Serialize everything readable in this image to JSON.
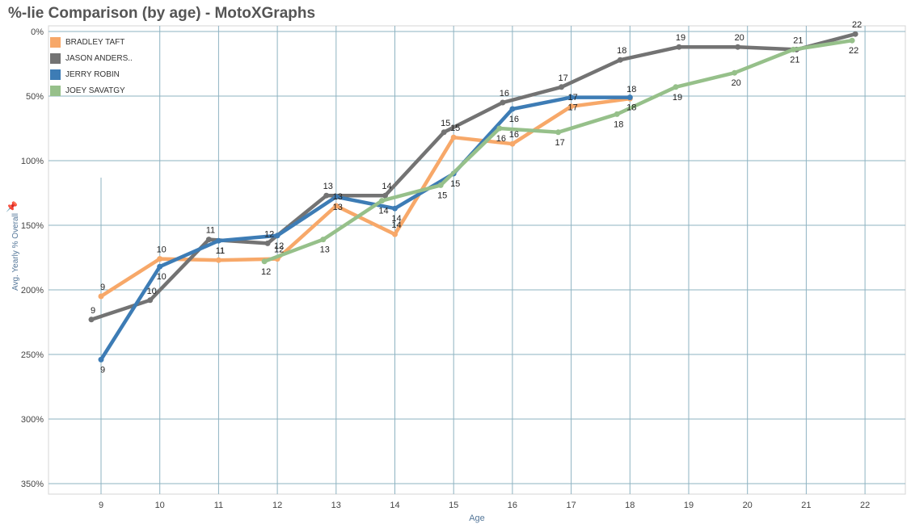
{
  "title": "%-lie Comparison (by age) - MotoXGraphs",
  "chart_data": {
    "type": "line",
    "title": "%-lie Comparison (by age) - MotoXGraphs",
    "xlabel": "Age",
    "ylabel": "Avg. Yearly % Overall",
    "x_ticks": [
      "9",
      "10",
      "11",
      "12",
      "13",
      "14",
      "15",
      "16",
      "17",
      "18",
      "19",
      "20",
      "21",
      "22"
    ],
    "y_ticks": [
      "0%",
      "50%",
      "100%",
      "150%",
      "200%",
      "250%",
      "300%",
      "350%"
    ],
    "ylim": [
      0,
      350
    ],
    "y_reversed": true,
    "grid": true,
    "legend_position": "top-left",
    "series": [
      {
        "name": "BRADLEY TAFT",
        "color": "#f7a869",
        "points": [
          {
            "age": 9,
            "value": 205,
            "label": "9"
          },
          {
            "age": 10,
            "value": 176,
            "label": "10"
          },
          {
            "age": 11,
            "value": 177,
            "label": "11"
          },
          {
            "age": 12,
            "value": 176,
            "label": "12"
          },
          {
            "age": 13,
            "value": 135,
            "label": "13"
          },
          {
            "age": 14,
            "value": 157,
            "label": "14"
          },
          {
            "age": 15,
            "value": 82,
            "label": "15"
          },
          {
            "age": 16,
            "value": 87,
            "label": "16"
          },
          {
            "age": 17,
            "value": 58,
            "label": "17"
          },
          {
            "age": 18,
            "value": 52,
            "label": "18"
          }
        ]
      },
      {
        "name": "JASON ANDERS..",
        "color": "#737373",
        "points": [
          {
            "age": 9,
            "value": 223,
            "label": "9"
          },
          {
            "age": 10,
            "value": 208,
            "label": "10"
          },
          {
            "age": 11,
            "value": 161,
            "label": "11"
          },
          {
            "age": 12,
            "value": 164,
            "label": "12"
          },
          {
            "age": 13,
            "value": 127,
            "label": "13"
          },
          {
            "age": 14,
            "value": 127,
            "label": "14"
          },
          {
            "age": 15,
            "value": 78,
            "label": "15"
          },
          {
            "age": 16,
            "value": 55,
            "label": "16"
          },
          {
            "age": 17,
            "value": 43,
            "label": "17"
          },
          {
            "age": 18,
            "value": 22,
            "label": "18"
          },
          {
            "age": 19,
            "value": 12,
            "label": "19"
          },
          {
            "age": 20,
            "value": 12,
            "label": "20"
          },
          {
            "age": 21,
            "value": 14,
            "label": "21"
          },
          {
            "age": 22,
            "value": 2,
            "label": "22"
          }
        ]
      },
      {
        "name": "JERRY ROBIN",
        "color": "#3d7cb5",
        "points": [
          {
            "age": 9,
            "value": 254,
            "label": "9"
          },
          {
            "age": 10,
            "value": 182,
            "label": "10"
          },
          {
            "age": 11,
            "value": 162,
            "label": "11"
          },
          {
            "age": 12,
            "value": 158,
            "label": "12"
          },
          {
            "age": 13,
            "value": 128,
            "label": "13"
          },
          {
            "age": 14,
            "value": 137,
            "label": "14"
          },
          {
            "age": 15,
            "value": 110,
            "label": "15"
          },
          {
            "age": 16,
            "value": 60,
            "label": "16"
          },
          {
            "age": 17,
            "value": 51,
            "label": "17"
          },
          {
            "age": 18,
            "value": 51,
            "label": "18"
          }
        ]
      },
      {
        "name": "JOEY SAVATGY",
        "color": "#96c08a",
        "points": [
          {
            "age": 12,
            "value": 178,
            "label": "12"
          },
          {
            "age": 13,
            "value": 161,
            "label": "13"
          },
          {
            "age": 14,
            "value": 131,
            "label": "14"
          },
          {
            "age": 15,
            "value": 119,
            "label": "15"
          },
          {
            "age": 16,
            "value": 75,
            "label": "16"
          },
          {
            "age": 17,
            "value": 78,
            "label": "17"
          },
          {
            "age": 18,
            "value": 64,
            "label": "18"
          },
          {
            "age": 19,
            "value": 43,
            "label": "19"
          },
          {
            "age": 20,
            "value": 32,
            "label": "20"
          },
          {
            "age": 21,
            "value": 14,
            "label": "21"
          },
          {
            "age": 22,
            "value": 7,
            "label": "22"
          }
        ]
      }
    ]
  }
}
